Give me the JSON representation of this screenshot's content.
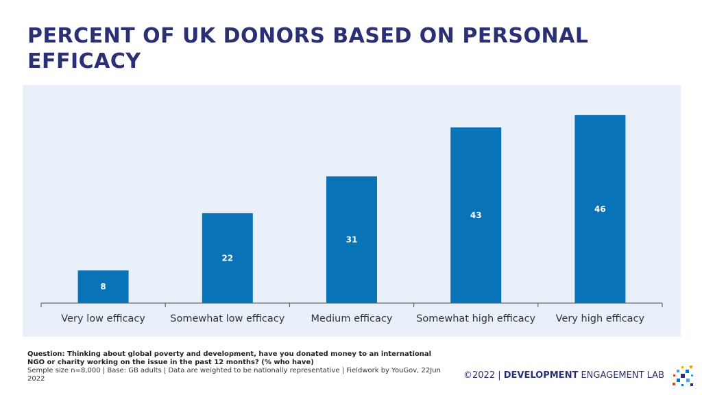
{
  "title": "PERCENT OF UK DONORS BASED ON PERSONAL EFFICACY",
  "chart_data": {
    "type": "bar",
    "categories": [
      "Very low efficacy",
      "Somewhat low efficacy",
      "Medium efficacy",
      "Somewhat high efficacy",
      "Very high efficacy"
    ],
    "values": [
      8,
      22,
      31,
      43,
      46
    ],
    "ylim": [
      0,
      50
    ],
    "grid": false,
    "data_labels": true,
    "bar_color": "#0874b7",
    "background_color": "#e9f0f9"
  },
  "footer": {
    "question": "Question:  Thinking about global poverty and development, have you donated money to an international NGO or charity working on the issue in the past 12 months? (% who have)",
    "meta": "Semple size n=8,000  | Base: GB adults | Data are weighted to be nationally representative | Fieldwork by YouGov, 22Jun 2022"
  },
  "brand": {
    "copyright": "©2022 | ",
    "name_bold": "DEVELOPMENT",
    "name_rest": " ENGAGEMENT LAB"
  },
  "colors": {
    "title": "#2b2f74",
    "accent": "#0874b7"
  }
}
